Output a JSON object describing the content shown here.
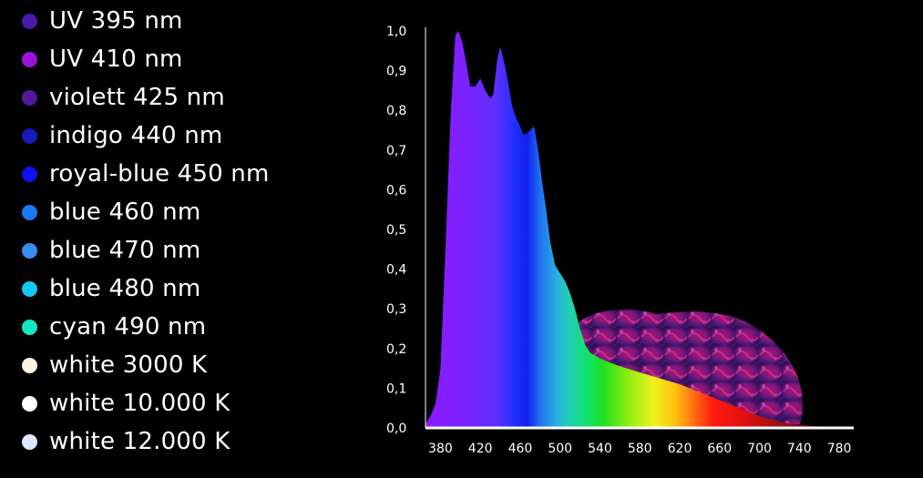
{
  "legend": {
    "items": [
      {
        "label": "UV 395 nm",
        "color": "#4a1aa8"
      },
      {
        "label": "UV 410 nm",
        "color": "#9a12d8"
      },
      {
        "label": "violett 425 nm",
        "color": "#52189a"
      },
      {
        "label": "indigo 440 nm",
        "color": "#1a18b8"
      },
      {
        "label": "royal-blue 450 nm",
        "color": "#1010f0"
      },
      {
        "label": "blue 460 nm",
        "color": "#1a78f0"
      },
      {
        "label": "blue 470 nm",
        "color": "#3a8cf0"
      },
      {
        "label": "blue 480 nm",
        "color": "#12c8f0"
      },
      {
        "label": "cyan 490 nm",
        "color": "#12e8c0"
      },
      {
        "label": "white 3000 K",
        "color": "#fff6e0"
      },
      {
        "label": "white 10.000 K",
        "color": "#ffffff"
      },
      {
        "label": "white 12.000 K",
        "color": "#dde8ff"
      }
    ]
  },
  "chart_data": {
    "type": "area",
    "x_ticks": [
      380,
      420,
      460,
      500,
      540,
      580,
      620,
      660,
      700,
      740,
      780
    ],
    "y_ticks": [
      "0,0",
      "0,1",
      "0,2",
      "0,3",
      "0,4",
      "0,5",
      "0,6",
      "0,7",
      "0,8",
      "0,9",
      "1,0"
    ],
    "xlim": [
      365,
      790
    ],
    "ylim": [
      0,
      1
    ],
    "x": [
      365,
      370,
      375,
      380,
      385,
      390,
      395,
      398,
      402,
      405,
      410,
      415,
      420,
      425,
      430,
      433,
      437,
      440,
      444,
      448,
      452,
      456,
      460,
      463,
      466,
      470,
      474,
      478,
      482,
      486,
      490,
      495,
      500,
      505,
      510,
      515,
      520,
      525,
      530,
      540,
      550,
      560,
      580,
      600,
      620,
      640,
      660,
      680,
      700,
      720,
      740,
      760,
      780
    ],
    "values": [
      0.01,
      0.03,
      0.06,
      0.15,
      0.45,
      0.78,
      0.99,
      1.0,
      0.97,
      0.93,
      0.86,
      0.86,
      0.88,
      0.85,
      0.83,
      0.84,
      0.93,
      0.96,
      0.92,
      0.87,
      0.81,
      0.78,
      0.76,
      0.74,
      0.74,
      0.75,
      0.76,
      0.7,
      0.62,
      0.55,
      0.47,
      0.41,
      0.39,
      0.37,
      0.34,
      0.3,
      0.25,
      0.21,
      0.19,
      0.175,
      0.165,
      0.155,
      0.14,
      0.125,
      0.11,
      0.09,
      0.07,
      0.05,
      0.03,
      0.015,
      0.008,
      0.004,
      0.002
    ]
  }
}
